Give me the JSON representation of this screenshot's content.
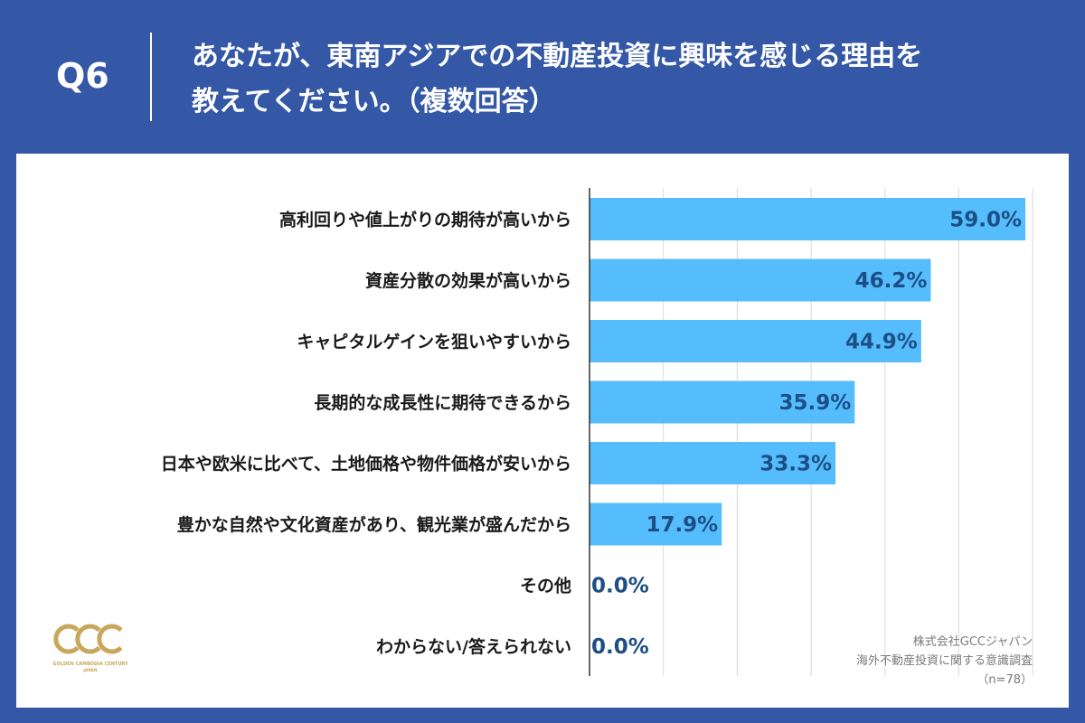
{
  "header": {
    "qnum": "Q6",
    "title_line1": "あなたが、東南アジアでの不動産投資に興味を感じる理由を",
    "title_line2": "教えてください。（複数回答）"
  },
  "source": {
    "line1": "株式会社GCCジャパン",
    "line2": "海外不動産投資に関する意識調査",
    "line3": "（n=78）"
  },
  "logo": {
    "text": "GCC",
    "subtext1": "GOLDEN CAMBODIA CENTURY",
    "subtext2": "JAPAN",
    "color": "#c9a75a"
  },
  "colors": {
    "header_bg": "#3457a6",
    "bar": "#55bdfb",
    "value_text": "#1d4e86",
    "grid": "#d9d9d9",
    "axis": "#333333"
  },
  "chart_data": {
    "type": "bar",
    "orientation": "horizontal",
    "categories": [
      "高利回りや値上がりの期待が高いから",
      "資産分散の効果が高いから",
      "キャピタルゲインを狙いやすいから",
      "長期的な成長性に期待できるから",
      "日本や欧米に比べて、土地価格や物件価格が安いから",
      "豊かな自然や文化資産があり、観光業が盛んだから",
      "その他",
      "わからない/答えられない"
    ],
    "values": [
      59.0,
      46.2,
      44.9,
      35.9,
      33.3,
      17.9,
      0.0,
      0.0
    ],
    "value_labels": [
      "59.0%",
      "46.2%",
      "44.9%",
      "35.9%",
      "33.3%",
      "17.9%",
      "0.0%",
      "0.0%"
    ],
    "xlim": [
      0,
      60
    ],
    "grid": true
  }
}
